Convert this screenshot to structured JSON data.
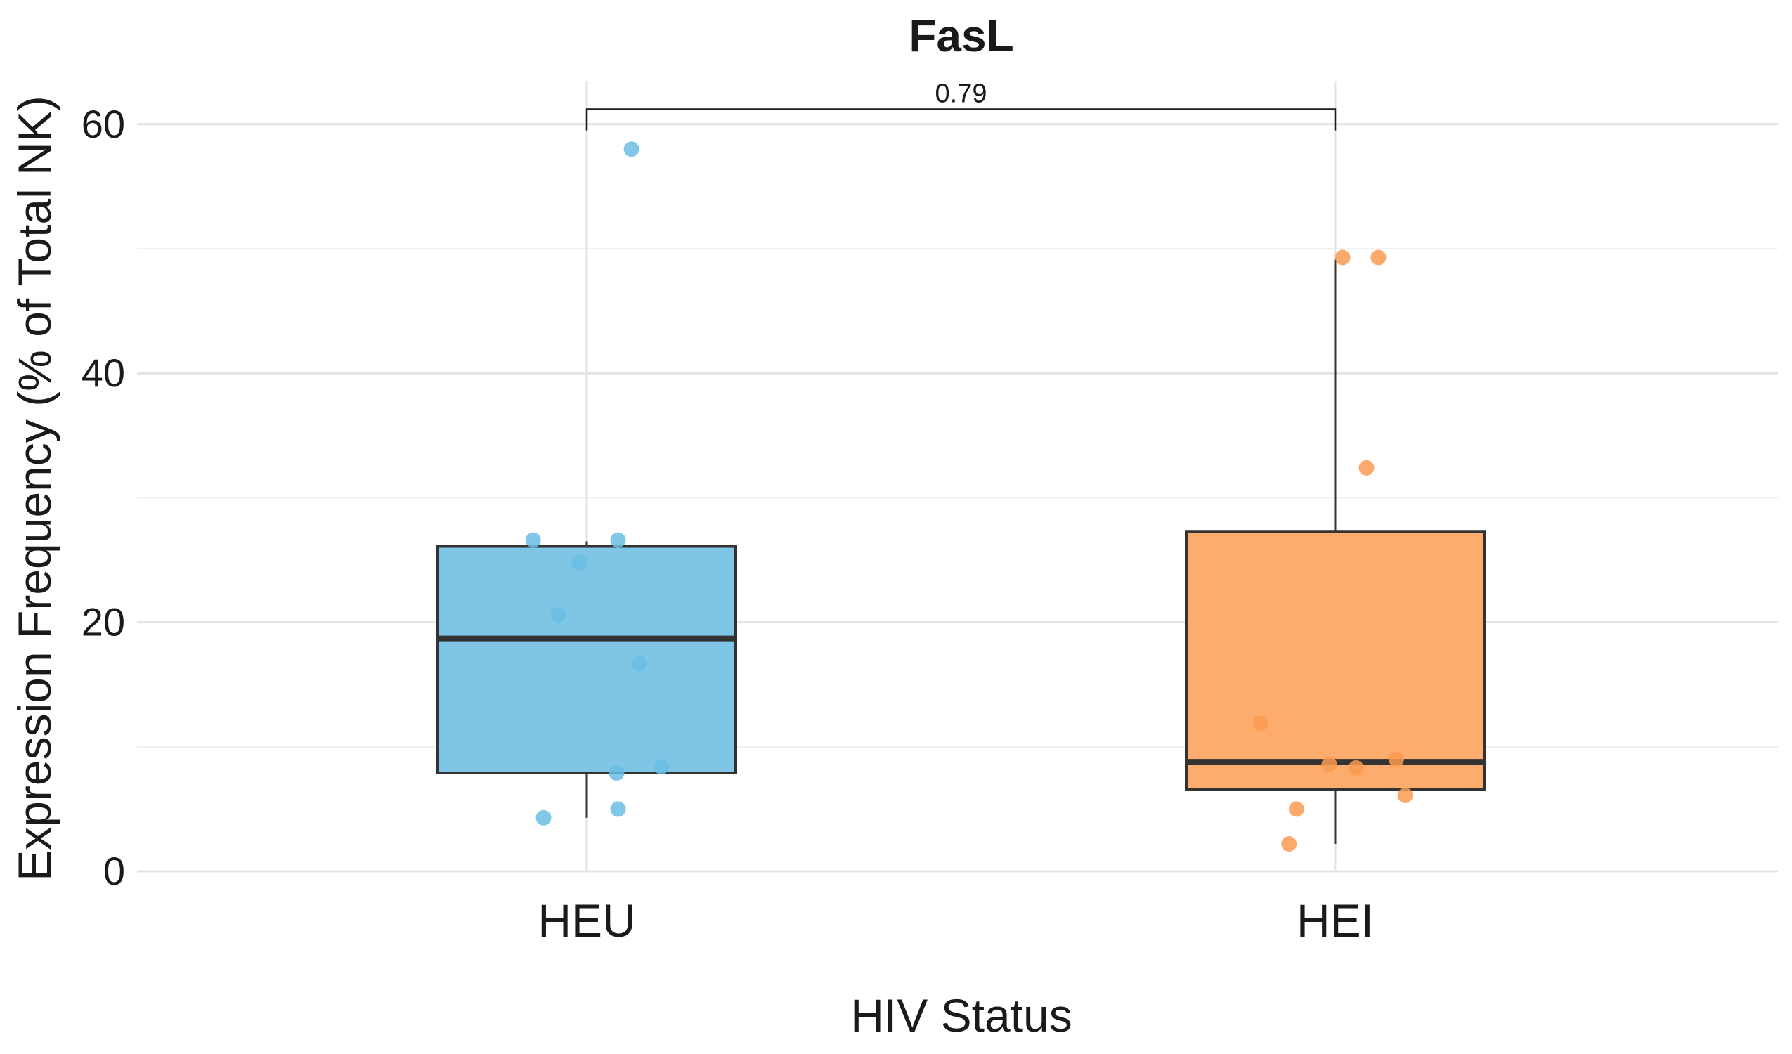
{
  "chart_data": {
    "type": "box",
    "title": "FasL",
    "xlabel": "HIV Status",
    "ylabel": "Expression Frequency (% of Total NK)",
    "categories": [
      "HEU",
      "HEI"
    ],
    "ylim": [
      0,
      64
    ],
    "yticks": [
      0,
      20,
      40,
      60
    ],
    "yticks_labels": [
      "0",
      "20",
      "40",
      "60"
    ],
    "grid": true,
    "colors": {
      "HEU": "#7fc6e6",
      "HEI": "#fdac6e",
      "HEU_point": "#6bbde3",
      "HEI_point": "#fb9a52"
    },
    "boxes": [
      {
        "name": "HEU",
        "q1": 7.9,
        "median": 18.7,
        "q3": 26.1,
        "whisker_low": 4.3,
        "whisker_high": 26.5
      },
      {
        "name": "HEI",
        "q1": 6.6,
        "median": 8.8,
        "q3": 27.3,
        "whisker_low": 2.2,
        "whisker_high": 49.2
      }
    ],
    "points": [
      {
        "group": "HEU",
        "values": [
          58.0,
          26.6,
          26.6,
          24.8,
          20.6,
          16.7,
          8.4,
          7.9,
          5.0,
          4.3
        ]
      },
      {
        "group": "HEI",
        "values": [
          49.3,
          49.3,
          32.4,
          11.9,
          9.0,
          8.6,
          8.3,
          6.1,
          5.0,
          2.2
        ]
      }
    ],
    "jitter": [
      [
        0.3,
        -0.36,
        0.21,
        -0.05,
        -0.19,
        0.35,
        0.5,
        0.2,
        0.21,
        -0.29
      ],
      [
        0.05,
        0.29,
        0.21,
        -0.5,
        0.41,
        -0.04,
        0.14,
        0.47,
        -0.26,
        -0.31
      ]
    ],
    "comparison": {
      "groups": [
        "HEU",
        "HEI"
      ],
      "label": "0.79",
      "y": 61.2
    }
  }
}
